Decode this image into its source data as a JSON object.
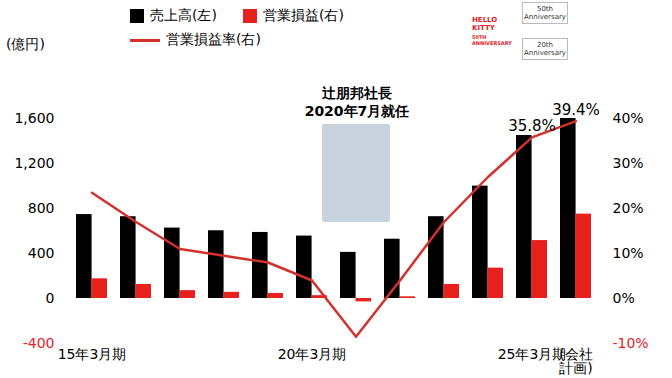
{
  "chart_data": {
    "type": "bar",
    "ylabel": "(億円)",
    "categories": [
      "15年3月期",
      null,
      null,
      null,
      null,
      "20年3月期",
      null,
      null,
      null,
      null,
      "25年3月期",
      "(会社\n計画)"
    ],
    "series": [
      {
        "name": "売上高(左)",
        "type": "bar",
        "color": "#000000",
        "values": [
          746,
          727,
          626,
          602,
          587,
          555,
          410,
          527,
          727,
          999,
          1449,
          1600
        ]
      },
      {
        "name": "営業損益(右)",
        "type": "bar",
        "color": "#e8211f",
        "values": [
          175,
          125,
          70,
          55,
          45,
          25,
          -30,
          15,
          125,
          270,
          515,
          750
        ]
      },
      {
        "name": "営業損益率(右)",
        "type": "line",
        "axis": "y2",
        "color": "#d3312c",
        "values": [
          23.5,
          17,
          11,
          9.5,
          8,
          4,
          -8.5,
          4,
          17,
          27,
          35.8,
          39.4
        ],
        "value_labels": [
          null,
          null,
          null,
          null,
          null,
          null,
          null,
          null,
          null,
          null,
          "35.8%",
          "39.4%"
        ]
      }
    ],
    "ylim": [
      -400,
      1600
    ],
    "yticks": [
      -400,
      0,
      400,
      800,
      {
        "value": 1200,
        "label": "1,200"
      },
      {
        "value": 1600,
        "label": "1,600"
      }
    ],
    "y2lim": [
      -10,
      40
    ],
    "y2ticks": [
      {
        "value": -10,
        "label": "-10%"
      },
      {
        "value": 0,
        "label": "0%"
      },
      {
        "value": 10,
        "label": "10%"
      },
      {
        "value": 20,
        "label": "20%"
      },
      {
        "value": 30,
        "label": "30%"
      },
      {
        "value": 40,
        "label": "40%"
      }
    ],
    "annotations": [
      {
        "text": "辻朋邦社長\n2020年7月就任"
      }
    ],
    "badge_texts": [
      "HELLO KITTY",
      "50TH ANNIVERSARY",
      "50th Anniversary",
      "20th Anniversary"
    ]
  }
}
